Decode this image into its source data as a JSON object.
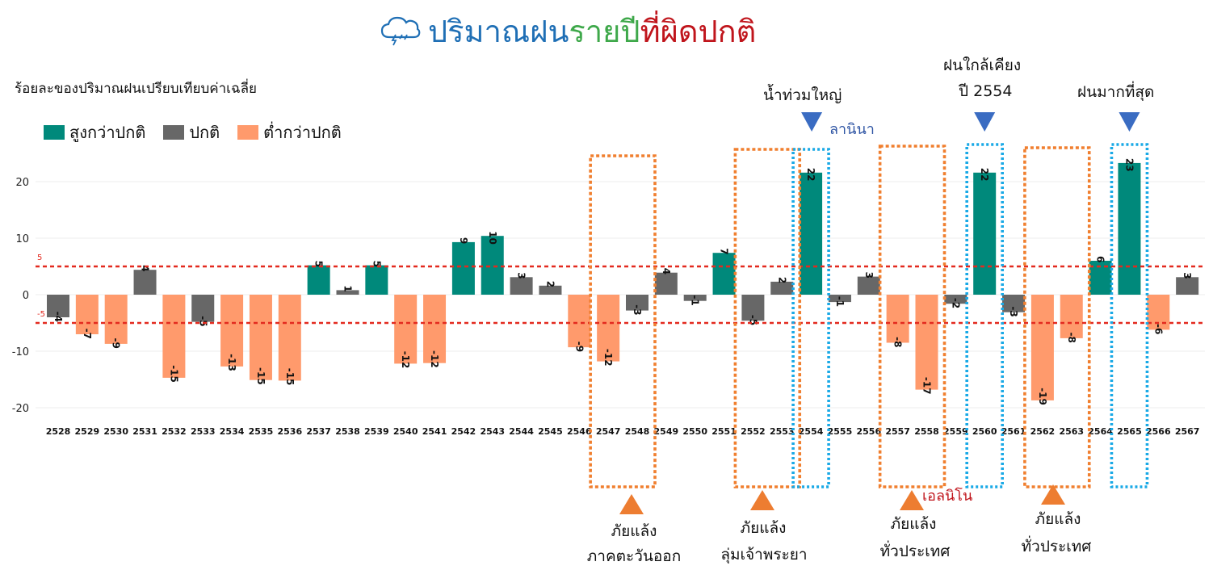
{
  "title": {
    "part1": "ปริมาณฝน",
    "part2": "รายปี",
    "part3": "ที่ผิดปกติ",
    "icon": "storm-cloud-icon"
  },
  "y_title": "ร้อยละของปริมาณฝนเปรียบเทียบค่าเฉลี่ย",
  "legend": [
    {
      "label": "สูงกว่าปกติ",
      "color": "#00897b"
    },
    {
      "label": "ปกติ",
      "color": "#676767"
    },
    {
      "label": "ต่ำกว่าปกติ",
      "color": "#ff9a6c"
    }
  ],
  "threshold_labels": {
    "upper": "5",
    "lower": "-5"
  },
  "chart_data": {
    "type": "bar",
    "categories": [
      "2528",
      "2529",
      "2530",
      "2531",
      "2532",
      "2533",
      "2534",
      "2535",
      "2536",
      "2537",
      "2538",
      "2539",
      "2540",
      "2541",
      "2542",
      "2543",
      "2544",
      "2545",
      "2546",
      "2547",
      "2548",
      "2549",
      "2550",
      "2551",
      "2552",
      "2553",
      "2554",
      "2555",
      "2556",
      "2557",
      "2558",
      "2559",
      "2560",
      "2561",
      "2562",
      "2563",
      "2564",
      "2565",
      "2566",
      "2567"
    ],
    "values": [
      -4,
      -7,
      -9,
      4,
      -15,
      -5,
      -13,
      -15,
      -15,
      5,
      1,
      5,
      -12,
      -12,
      9,
      10,
      3,
      2,
      -9,
      -12,
      -3,
      4,
      -1,
      7,
      -5,
      2,
      22,
      -1,
      3,
      -8,
      -17,
      -2,
      22,
      -3,
      -19,
      -8,
      6,
      23,
      -6,
      3
    ],
    "exact_values": [
      -4,
      -7,
      -8.7,
      4.4,
      -14.7,
      -4.8,
      -12.7,
      -15.1,
      -15.2,
      5.2,
      0.8,
      5.2,
      -12.2,
      -12.1,
      9.3,
      10.4,
      3.1,
      1.6,
      -9.3,
      -11.8,
      -2.8,
      3.9,
      -1.1,
      7.4,
      -4.6,
      2.3,
      21.6,
      -1.3,
      3.2,
      -8.5,
      -16.8,
      -1.6,
      21.6,
      -3.1,
      -18.7,
      -7.7,
      6,
      23.3,
      -6.2,
      3.1
    ],
    "classes": [
      "normal",
      "below",
      "below",
      "normal",
      "below",
      "normal",
      "below",
      "below",
      "below",
      "above",
      "normal",
      "above",
      "below",
      "below",
      "above",
      "above",
      "normal",
      "normal",
      "below",
      "below",
      "normal",
      "normal",
      "normal",
      "above",
      "normal",
      "normal",
      "above",
      "normal",
      "normal",
      "below",
      "below",
      "normal",
      "above",
      "normal",
      "below",
      "below",
      "above",
      "above",
      "below",
      "normal"
    ],
    "ylim": [
      -22,
      27
    ],
    "yticks": [
      20,
      10,
      0,
      -10,
      -20
    ],
    "thresholds": [
      5,
      -5
    ],
    "grid": true,
    "legend_position": "top-left"
  },
  "events": [
    {
      "top_label": "",
      "bottom_lines": [
        "ภัยแล้ง",
        "ภาคตะวันออก"
      ],
      "from": "2547",
      "to": "2548",
      "style": "drought"
    },
    {
      "top_label": "",
      "bottom_lines": [
        "ภัยแล้ง",
        "ลุ่มเจ้าพระยา"
      ],
      "from": "2552",
      "to": "2553",
      "style": "drought"
    },
    {
      "top_label": "น้ำท่วมใหญ่",
      "side_label": "ลานินา",
      "from": "2554",
      "to": "2554",
      "style": "flood"
    },
    {
      "top_label": "",
      "bottom_lines": [
        "ภัยแล้ง",
        "ทั่วประเทศ"
      ],
      "side_label": "เอลนิโน",
      "from": "2557",
      "to": "2558",
      "style": "drought"
    },
    {
      "top_label": "ฝนใกล้เคียง|ปี 2554",
      "from": "2560",
      "to": "2560",
      "style": "flood"
    },
    {
      "top_label": "",
      "bottom_lines": [
        "ภัยแล้ง",
        "ทั่วประเทศ"
      ],
      "from": "2562",
      "to": "2563",
      "style": "drought"
    },
    {
      "top_label": "ฝนมากที่สุด",
      "from": "2565",
      "to": "2565",
      "style": "flood"
    }
  ],
  "annotations": {
    "flood1": "น้ำท่วมใหญ่",
    "lanina": "ลานินา",
    "flood2_line1": "ฝนใกล้เคียง",
    "flood2_line2": "ปี 2554",
    "flood3": "ฝนมากที่สุด",
    "elnino": "เอลนิโน",
    "drought1_line1": "ภัยแล้ง",
    "drought1_line2": "ภาคตะวันออก",
    "drought2_line1": "ภัยแล้ง",
    "drought2_line2": "ลุ่มเจ้าพระยา",
    "drought3_line1": "ภัยแล้ง",
    "drought3_line2": "ทั่วประเทศ",
    "drought4_line1": "ภัยแล้ง",
    "drought4_line2": "ทั่วประเทศ"
  },
  "colors": {
    "above": "#00897b",
    "normal": "#676767",
    "below": "#ff9a6c",
    "threshold": "#e32a1f",
    "drought_box": "#f07f2f",
    "flood_box": "#19a9e6",
    "marker_blue": "#3a6cc2",
    "marker_orange": "#ed7d31"
  }
}
